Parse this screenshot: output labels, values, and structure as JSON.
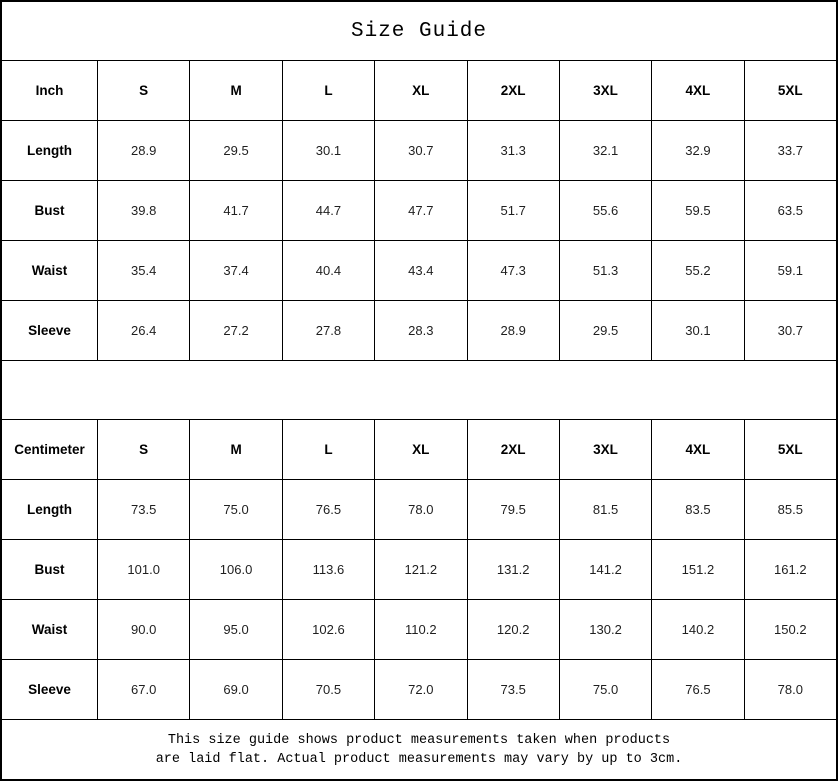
{
  "title": "Size Guide",
  "colors": {
    "background": "#ffffff",
    "border": "#000000",
    "text": "#111111"
  },
  "tables": [
    {
      "name": "inch",
      "header": [
        "Inch",
        "S",
        "M",
        "L",
        "XL",
        "2XL",
        "3XL",
        "4XL",
        "5XL"
      ],
      "rows": [
        {
          "label": "Length",
          "values": [
            "28.9",
            "29.5",
            "30.1",
            "30.7",
            "31.3",
            "32.1",
            "32.9",
            "33.7"
          ]
        },
        {
          "label": "Bust",
          "values": [
            "39.8",
            "41.7",
            "44.7",
            "47.7",
            "51.7",
            "55.6",
            "59.5",
            "63.5"
          ]
        },
        {
          "label": "Waist",
          "values": [
            "35.4",
            "37.4",
            "40.4",
            "43.4",
            "47.3",
            "51.3",
            "55.2",
            "59.1"
          ]
        },
        {
          "label": "Sleeve",
          "values": [
            "26.4",
            "27.2",
            "27.8",
            "28.3",
            "28.9",
            "29.5",
            "30.1",
            "30.7"
          ]
        }
      ]
    },
    {
      "name": "centimeter",
      "header": [
        "Centimeter",
        "S",
        "M",
        "L",
        "XL",
        "2XL",
        "3XL",
        "4XL",
        "5XL"
      ],
      "rows": [
        {
          "label": "Length",
          "values": [
            "73.5",
            "75.0",
            "76.5",
            "78.0",
            "79.5",
            "81.5",
            "83.5",
            "85.5"
          ]
        },
        {
          "label": "Bust",
          "values": [
            "101.0",
            "106.0",
            "113.6",
            "121.2",
            "131.2",
            "141.2",
            "151.2",
            "161.2"
          ]
        },
        {
          "label": "Waist",
          "values": [
            "90.0",
            "95.0",
            "102.6",
            "110.2",
            "120.2",
            "130.2",
            "140.2",
            "150.2"
          ]
        },
        {
          "label": "Sleeve",
          "values": [
            "67.0",
            "69.0",
            "70.5",
            "72.0",
            "73.5",
            "75.0",
            "76.5",
            "78.0"
          ]
        }
      ]
    }
  ],
  "footer": {
    "note": "This size guide shows product measurements taken when products\nare laid flat. Actual product measurements may vary by up to 3cm."
  }
}
